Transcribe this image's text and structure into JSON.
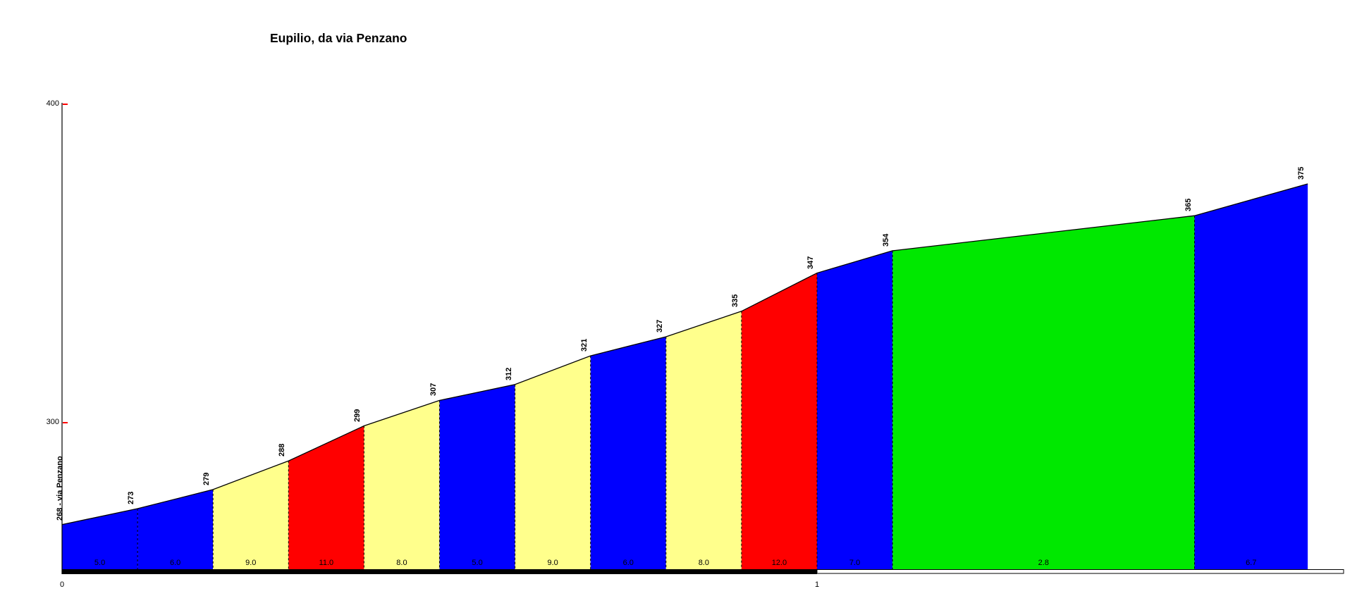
{
  "title": "Eupilio, da via Penzano",
  "chart_data": {
    "type": "area",
    "title": "Eupilio, da via Penzano",
    "xlabel": "",
    "ylabel": "",
    "x_unit": "km",
    "y_unit": "m",
    "start": {
      "km": 0,
      "elev": 268,
      "label": "268 - via Penzano"
    },
    "end": {
      "km": 1.65,
      "elev": 375
    },
    "points": [
      [
        0,
        268
      ],
      [
        0.1,
        273
      ],
      [
        0.2,
        279
      ],
      [
        0.3,
        288
      ],
      [
        0.4,
        299
      ],
      [
        0.5,
        307
      ],
      [
        0.6,
        312
      ],
      [
        0.7,
        321
      ],
      [
        0.8,
        327
      ],
      [
        0.9,
        335
      ],
      [
        1.0,
        347
      ],
      [
        1.1,
        354
      ],
      [
        1.5,
        365
      ],
      [
        1.65,
        375
      ]
    ],
    "segments": [
      {
        "from_km": 0.0,
        "to_km": 0.1,
        "to_elev": 273,
        "gradient_pct": "5.0",
        "color": "#0000FF"
      },
      {
        "from_km": 0.1,
        "to_km": 0.2,
        "to_elev": 279,
        "gradient_pct": "6.0",
        "color": "#0000FF"
      },
      {
        "from_km": 0.2,
        "to_km": 0.3,
        "to_elev": 288,
        "gradient_pct": "9.0",
        "color": "#FFFF8C"
      },
      {
        "from_km": 0.3,
        "to_km": 0.4,
        "to_elev": 299,
        "gradient_pct": "11.0",
        "color": "#FF0000"
      },
      {
        "from_km": 0.4,
        "to_km": 0.5,
        "to_elev": 307,
        "gradient_pct": "8.0",
        "color": "#FFFF8C"
      },
      {
        "from_km": 0.5,
        "to_km": 0.6,
        "to_elev": 312,
        "gradient_pct": "5.0",
        "color": "#0000FF"
      },
      {
        "from_km": 0.6,
        "to_km": 0.7,
        "to_elev": 321,
        "gradient_pct": "9.0",
        "color": "#FFFF8C"
      },
      {
        "from_km": 0.7,
        "to_km": 0.8,
        "to_elev": 327,
        "gradient_pct": "6.0",
        "color": "#0000FF"
      },
      {
        "from_km": 0.8,
        "to_km": 0.9,
        "to_elev": 335,
        "gradient_pct": "8.0",
        "color": "#FFFF8C"
      },
      {
        "from_km": 0.9,
        "to_km": 1.0,
        "to_elev": 347,
        "gradient_pct": "12.0",
        "color": "#FF0000"
      },
      {
        "from_km": 1.0,
        "to_km": 1.1,
        "to_elev": 354,
        "gradient_pct": "7.0",
        "color": "#0000FF"
      },
      {
        "from_km": 1.1,
        "to_km": 1.5,
        "to_elev": 365,
        "gradient_pct": "2.8",
        "color": "#00E800"
      },
      {
        "from_km": 1.5,
        "to_km": 1.65,
        "to_elev": 375,
        "gradient_pct": "6.7",
        "color": "#0000FF"
      }
    ],
    "y_ticks": [
      {
        "elev": 400,
        "label": "400"
      },
      {
        "elev": 300,
        "label": "300"
      }
    ],
    "x_ticks": [
      {
        "km": 0,
        "label": "0"
      },
      {
        "km": 1,
        "label": "1"
      }
    ],
    "ylim": [
      255,
      400
    ],
    "grid": false,
    "legend": "none",
    "colors": {
      "tick": "#FF0000",
      "outline": "#000000",
      "km_bar_filled": "#000000",
      "km_bar_partial": "#FFFFFF"
    }
  }
}
